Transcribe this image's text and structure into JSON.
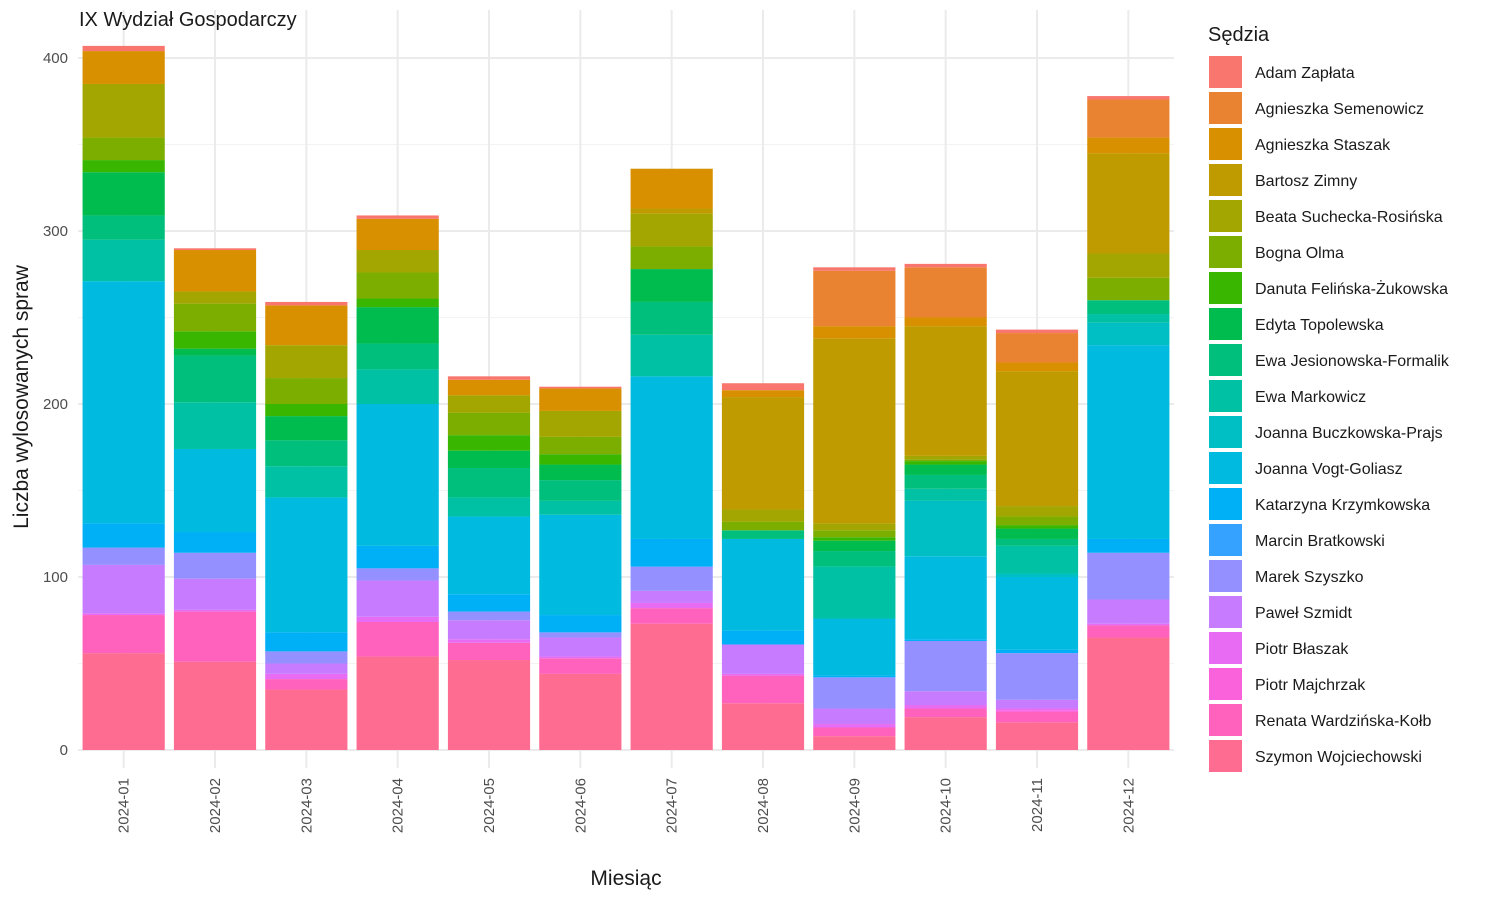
{
  "chart_data": {
    "type": "bar",
    "stacked": true,
    "title": "IX Wydział Gospodarczy",
    "xlabel": "Miesiąc",
    "ylabel": "Liczba wylosowanych spraw",
    "ylim": [
      0,
      420
    ],
    "yticks": [
      0,
      100,
      200,
      300,
      400
    ],
    "legend_title": "Sędzia",
    "legend_position": "right",
    "grid": true,
    "categories": [
      "2024-01",
      "2024-02",
      "2024-03",
      "2024-04",
      "2024-05",
      "2024-06",
      "2024-07",
      "2024-08",
      "2024-09",
      "2024-10",
      "2024-11",
      "2024-12"
    ],
    "series": [
      {
        "name": "Adam Zapłata",
        "color": "#F8766D",
        "values": [
          3,
          1,
          2,
          2,
          2,
          1,
          0,
          4,
          2,
          2,
          2,
          2
        ]
      },
      {
        "name": "Agnieszka Semenowicz",
        "color": "#EA8331",
        "values": [
          0,
          0,
          0,
          0,
          0,
          0,
          0,
          0,
          32,
          29,
          17,
          22
        ]
      },
      {
        "name": "Agnieszka Staszak",
        "color": "#D89000",
        "values": [
          19,
          24,
          23,
          18,
          9,
          13,
          23,
          4,
          7,
          5,
          5,
          9
        ]
      },
      {
        "name": "Bartosz Zimny",
        "color": "#C09B00",
        "values": [
          0,
          0,
          0,
          0,
          0,
          0,
          3,
          65,
          107,
          75,
          78,
          58
        ]
      },
      {
        "name": "Beata Suchecka-Rosińska",
        "color": "#A3A500",
        "values": [
          31,
          7,
          19,
          13,
          10,
          15,
          19,
          7,
          4,
          2,
          6,
          14
        ]
      },
      {
        "name": "Bogna Olma",
        "color": "#7CAE00",
        "values": [
          13,
          16,
          15,
          15,
          13,
          10,
          13,
          5,
          4,
          1,
          5,
          13
        ]
      },
      {
        "name": "Danuta Felińska-Żukowska",
        "color": "#39B600",
        "values": [
          7,
          10,
          7,
          5,
          9,
          6,
          0,
          0,
          2,
          2,
          2,
          0
        ]
      },
      {
        "name": "Edyta Topolewska",
        "color": "#00BB4E",
        "values": [
          25,
          4,
          14,
          21,
          10,
          9,
          19,
          0,
          6,
          6,
          6,
          0
        ]
      },
      {
        "name": "Ewa Jesionowska-Formalik",
        "color": "#00BF7D",
        "values": [
          14,
          27,
          15,
          15,
          17,
          12,
          19,
          5,
          9,
          8,
          4,
          8
        ]
      },
      {
        "name": "Ewa Markowicz",
        "color": "#00C1A3",
        "values": [
          24,
          27,
          18,
          20,
          11,
          8,
          24,
          0,
          30,
          7,
          16,
          5
        ]
      },
      {
        "name": "Joanna Buczkowska-Prajs",
        "color": "#00BFC4",
        "values": [
          0,
          0,
          0,
          0,
          0,
          0,
          0,
          0,
          0,
          32,
          2,
          13
        ]
      },
      {
        "name": "Joanna Vogt-Goliasz",
        "color": "#00BAE0",
        "values": [
          140,
          48,
          78,
          82,
          45,
          58,
          94,
          53,
          33,
          48,
          42,
          112
        ]
      },
      {
        "name": "Katarzyna Krzymkowska",
        "color": "#00B0F6",
        "values": [
          14,
          12,
          11,
          13,
          10,
          10,
          16,
          8,
          1,
          1,
          2,
          8
        ]
      },
      {
        "name": "Marcin Bratkowski",
        "color": "#35A2FF",
        "values": [
          0,
          0,
          0,
          0,
          0,
          0,
          0,
          0,
          0,
          0,
          0,
          0
        ]
      },
      {
        "name": "Marek Szyszko",
        "color": "#9590FF",
        "values": [
          10,
          15,
          7,
          7,
          5,
          3,
          14,
          0,
          18,
          29,
          27,
          27
        ]
      },
      {
        "name": "Paweł Szmidt",
        "color": "#C77CFF",
        "values": [
          28,
          18,
          6,
          21,
          11,
          11,
          7,
          17,
          9,
          8,
          5,
          14
        ]
      },
      {
        "name": "Piotr Błaszak",
        "color": "#E76BF3",
        "values": [
          1,
          1,
          3,
          3,
          2,
          1,
          3,
          1,
          2,
          2,
          1,
          1
        ]
      },
      {
        "name": "Piotr Majchrzak",
        "color": "#FA62DB",
        "values": [
          0,
          0,
          0,
          0,
          0,
          0,
          0,
          0,
          0,
          0,
          1,
          0
        ]
      },
      {
        "name": "Renata Wardzińska-Kołb",
        "color": "#FF62BC",
        "values": [
          22,
          29,
          6,
          20,
          10,
          9,
          9,
          16,
          5,
          5,
          6,
          7
        ]
      },
      {
        "name": "Szymon Wojciechowski",
        "color": "#FF6C91",
        "values": [
          56,
          51,
          35,
          54,
          52,
          44,
          73,
          27,
          8,
          19,
          16,
          65
        ]
      }
    ]
  }
}
